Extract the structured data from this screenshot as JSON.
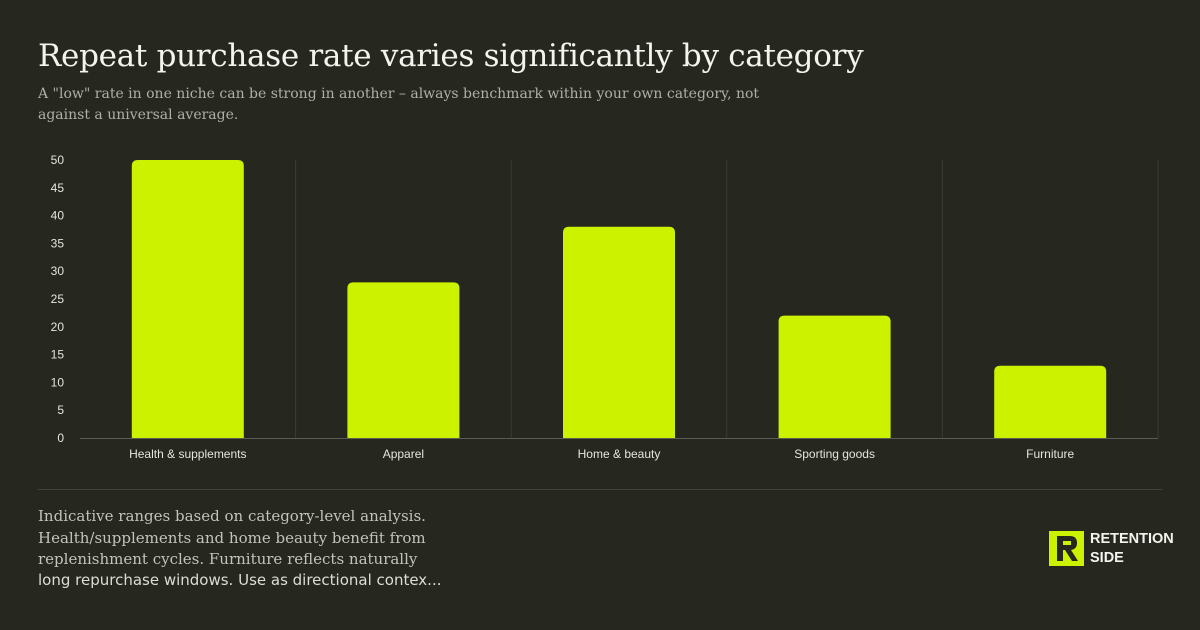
{
  "header": {
    "title": "Repeat purchase rate varies significantly by category",
    "subtitle": "A \"low\" rate in one niche can be strong in another – always benchmark within your own category, not against a universal average."
  },
  "chart_data": {
    "type": "bar",
    "categories": [
      "Health & supplements",
      "Apparel",
      "Home & beauty",
      "Sporting goods",
      "Furniture"
    ],
    "values": [
      50,
      28,
      38,
      22,
      13
    ],
    "ylim": [
      0,
      50
    ],
    "yticks": [
      0,
      5,
      10,
      15,
      20,
      25,
      30,
      35,
      40,
      45,
      50
    ],
    "xlabel": "",
    "ylabel": "",
    "grid": "vertical separators between categories",
    "legend": "none",
    "bar_color": "#ccf200"
  },
  "footer": {
    "note": "Indicative ranges based on category-level analysis. Health/supplements and home beauty benefit from replenishment cycles. Furniture reflects naturally",
    "note_truncated": "long repurchase windows. Use as directional contex..."
  },
  "brand": {
    "line1": "RETENTION",
    "line2": "SIDE",
    "logo_icon": "rs-logo-icon",
    "accent": "#ccf200"
  }
}
